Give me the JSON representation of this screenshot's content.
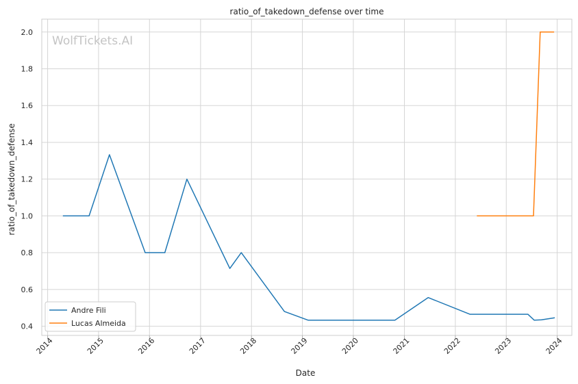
{
  "chart_data": {
    "type": "line",
    "title": "ratio_of_takedown_defense over time",
    "xlabel": "Date",
    "ylabel": "ratio_of_takedown_defense",
    "watermark": "WolfTickets.AI",
    "xlim": [
      "2013-11-20",
      "2024-04-15"
    ],
    "ylim": [
      0.35,
      2.07
    ],
    "x_ticks": [
      "2014",
      "2015",
      "2016",
      "2017",
      "2018",
      "2019",
      "2020",
      "2021",
      "2022",
      "2023",
      "2024"
    ],
    "y_ticks": [
      "0.4",
      "0.6",
      "0.8",
      "1.0",
      "1.2",
      "1.4",
      "1.6",
      "1.8",
      "2.0"
    ],
    "grid": true,
    "legend_position": "lower-left",
    "series": [
      {
        "name": "Andre Fili",
        "color": "#1f77b4",
        "points": [
          [
            "2014-04-20",
            1.0
          ],
          [
            "2014-10-25",
            1.0
          ],
          [
            "2015-03-20",
            1.333
          ],
          [
            "2015-12-01",
            0.8
          ],
          [
            "2016-04-20",
            0.8
          ],
          [
            "2016-09-25",
            1.2
          ],
          [
            "2017-07-30",
            0.714
          ],
          [
            "2017-10-20",
            0.8
          ],
          [
            "2018-08-25",
            0.48
          ],
          [
            "2019-02-10",
            0.433
          ],
          [
            "2020-10-25",
            0.433
          ],
          [
            "2021-06-20",
            0.556
          ],
          [
            "2022-04-15",
            0.465
          ],
          [
            "2023-06-05",
            0.465
          ],
          [
            "2023-07-20",
            0.433
          ],
          [
            "2023-09-10",
            0.435
          ],
          [
            "2023-12-15",
            0.446
          ]
        ]
      },
      {
        "name": "Lucas Almeida",
        "color": "#ff7f0e",
        "points": [
          [
            "2022-06-04",
            1.0
          ],
          [
            "2023-07-15",
            1.0
          ],
          [
            "2023-09-01",
            2.0
          ],
          [
            "2023-12-10",
            2.0
          ]
        ]
      }
    ]
  }
}
